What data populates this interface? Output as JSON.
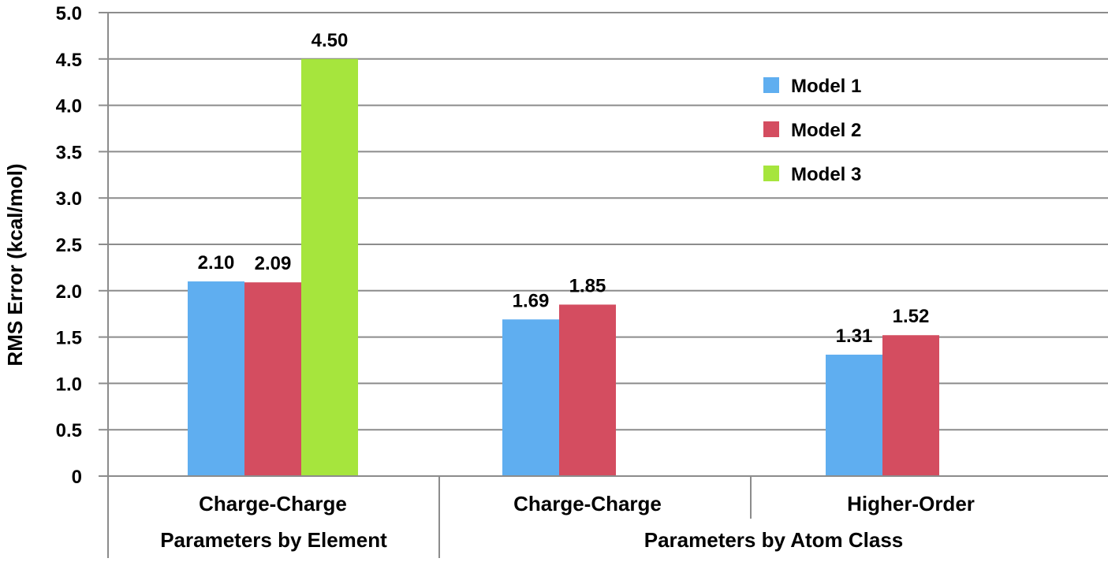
{
  "chart_data": {
    "type": "bar",
    "ylabel": "RMS Error (kcal/mol)",
    "ylim": [
      0,
      5
    ],
    "yticks": [
      "0",
      "0.5",
      "1.0",
      "1.5",
      "2.0",
      "2.5",
      "3.0",
      "3.5",
      "4.0",
      "4.5",
      "5.0"
    ],
    "grid": true,
    "legend_position": "top-right",
    "categories": [
      "Charge-Charge",
      "Charge-Charge",
      "Higher-Order"
    ],
    "groups": [
      {
        "label": "Parameters by Element",
        "categories": [
          0
        ]
      },
      {
        "label": "Parameters by Atom Class",
        "categories": [
          1,
          2
        ]
      }
    ],
    "series": [
      {
        "name": "Model 1",
        "color": "#5faef0",
        "values": [
          2.1,
          1.69,
          1.31
        ],
        "labels": [
          "2.10",
          "1.69",
          "1.31"
        ]
      },
      {
        "name": "Model 2",
        "color": "#d44d60",
        "values": [
          2.09,
          1.85,
          1.52
        ],
        "labels": [
          "2.09",
          "1.85",
          "1.52"
        ]
      },
      {
        "name": "Model 3",
        "color": "#a6e53d",
        "values": [
          4.5,
          null,
          null
        ],
        "labels": [
          "4.50",
          "",
          ""
        ]
      }
    ]
  }
}
